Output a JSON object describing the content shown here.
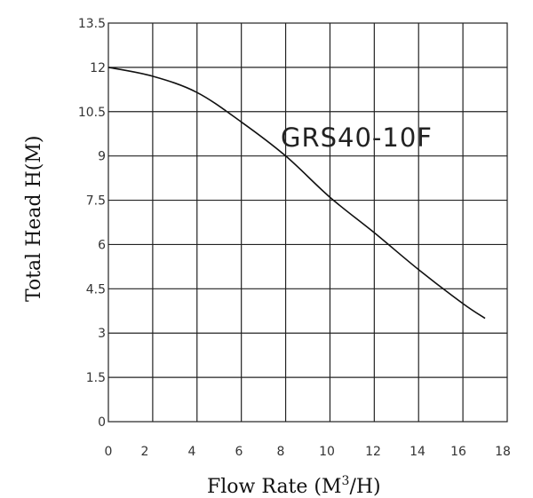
{
  "chart_data": {
    "type": "line",
    "title": "",
    "xlabel": "Flow Rate (M³/H)",
    "ylabel": "Total Head H(M)",
    "xlim": [
      0,
      18
    ],
    "ylim": [
      0,
      13.5
    ],
    "grid": true,
    "x_ticks": [
      "0",
      "2",
      "4",
      "6",
      "8",
      "10",
      "12",
      "14",
      "16",
      "18"
    ],
    "y_ticks": [
      "0",
      "1.5",
      "3",
      "4.5",
      "6",
      "7.5",
      "9",
      "10.5",
      "12",
      "13.5"
    ],
    "annotations": [
      {
        "text": "GRS40-10F",
        "x": 10.4,
        "y": 9.5
      }
    ],
    "series": [
      {
        "name": "GRS40-10F",
        "x": [
          0,
          2,
          4,
          6,
          8,
          10,
          12,
          14,
          16,
          17
        ],
        "values": [
          12.0,
          11.7,
          11.15,
          10.15,
          9.0,
          7.6,
          6.4,
          5.15,
          4.0,
          3.5
        ]
      }
    ]
  },
  "labels": {
    "xlabel_main": "Flow Rate (M",
    "xlabel_sup": "3",
    "xlabel_tail": "/H)",
    "ylabel": "Total Head H(M)",
    "series_label": "GRS40-10F"
  }
}
